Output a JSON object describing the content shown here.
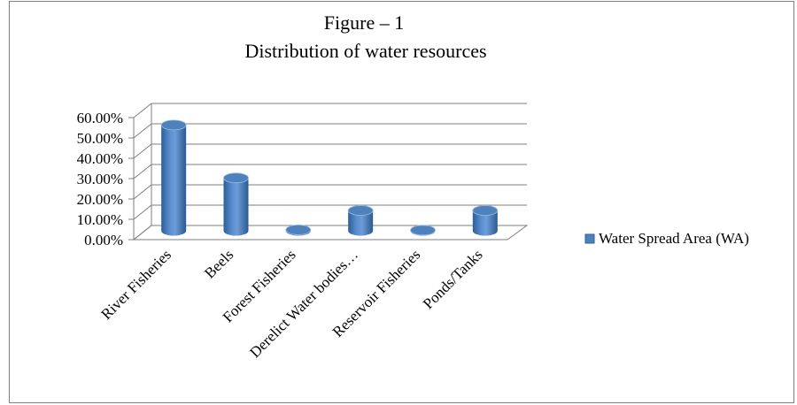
{
  "chart_data": {
    "type": "bar",
    "title": "Figure – 1",
    "subtitle": "Distribution of water resources",
    "categories": [
      "River Fisheries",
      "Beels",
      "Forest Fisheries",
      "Derelict Water bodies…",
      "Reservoir Fisheries",
      "Ponds/Tanks"
    ],
    "series": [
      {
        "name": "Water Spread Area (WA)",
        "values": [
          52,
          26,
          0.5,
          10,
          0.3,
          10
        ]
      }
    ],
    "y_ticks": [
      "0.00%",
      "10.00%",
      "20.00%",
      "30.00%",
      "40.00%",
      "50.00%",
      "60.00%"
    ],
    "ylim": [
      0,
      60
    ],
    "y_unit": "percent",
    "bar_shape": "3d-cylinder",
    "grid": true,
    "legend_position": "right",
    "colors": {
      "bar": "#4f81bd",
      "bar_dark": "#2c5f97",
      "bar_light": "#9cbde6",
      "grid": "#7f7f7f"
    }
  }
}
